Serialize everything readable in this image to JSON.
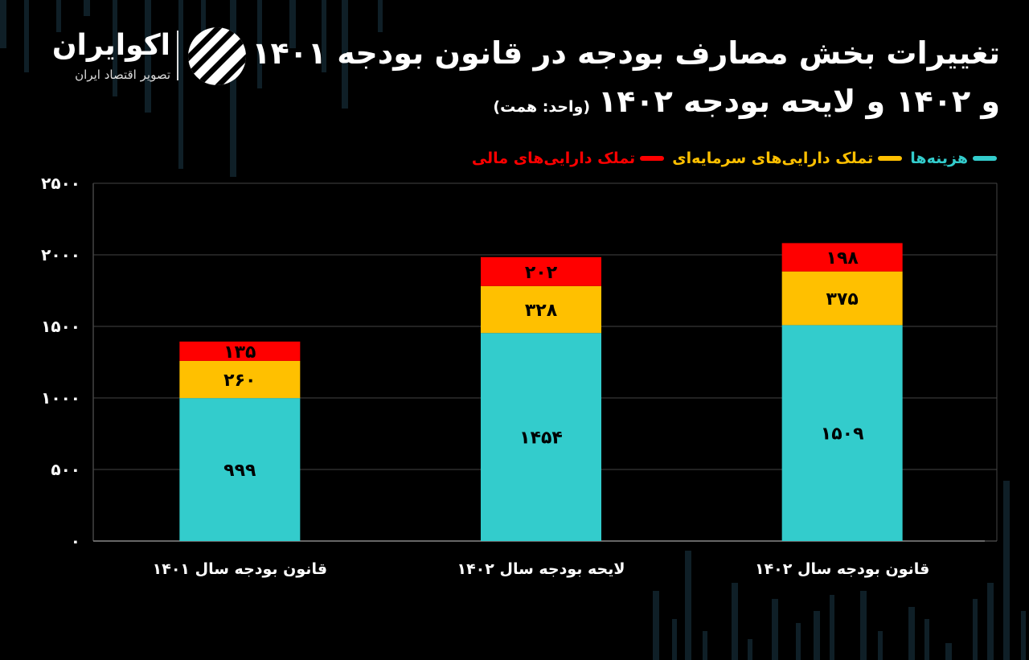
{
  "brand": {
    "name": "اکوایران",
    "tagline": "تصویر اقتصاد ایران"
  },
  "title_line1": "تغییرات بخش مصارف بودجه در قانون بودجه ۱۴۰۱",
  "title_line2": "و ۱۴۰۲ و لایحه بودجه ۱۴۰۲",
  "unit_note": "(واحد: همت)",
  "colors": {
    "background": "#000000",
    "expenses": "#33CCCC",
    "capital_assets": "#FFC000",
    "financial_assets": "#FF0000",
    "grid": "#444444",
    "text": "#FFFFFF"
  },
  "chart_data": {
    "type": "bar",
    "stacked": true,
    "categories": [
      "قانون بودجه سال ۱۴۰۱",
      "لایحه بودجه سال ۱۴۰۲",
      "قانون بودجه سال ۱۴۰۲"
    ],
    "series": [
      {
        "name": "هزینه‌ها",
        "color": "#33CCCC",
        "values": [
          999,
          1454,
          1509
        ],
        "labels": [
          "۹۹۹",
          "۱۴۵۴",
          "۱۵۰۹"
        ]
      },
      {
        "name": "تملک دارایی‌های سرمایه‌ای",
        "color": "#FFC000",
        "values": [
          260,
          328,
          375
        ],
        "labels": [
          "۲۶۰",
          "۳۲۸",
          "۳۷۵"
        ]
      },
      {
        "name": "تملک دارایی‌های مالی",
        "color": "#FF0000",
        "values": [
          135,
          202,
          198
        ],
        "labels": [
          "۱۳۵",
          "۲۰۲",
          "۱۹۸"
        ]
      }
    ],
    "yticks": [
      0,
      500,
      1000,
      1500,
      2000,
      2500
    ],
    "ytick_labels": [
      "۰",
      "۵۰۰",
      "۱۰۰۰",
      "۱۵۰۰",
      "۲۰۰۰",
      "۲۵۰۰"
    ],
    "ylim": [
      0,
      2500
    ],
    "grid": true,
    "legend_position": "top-right"
  }
}
